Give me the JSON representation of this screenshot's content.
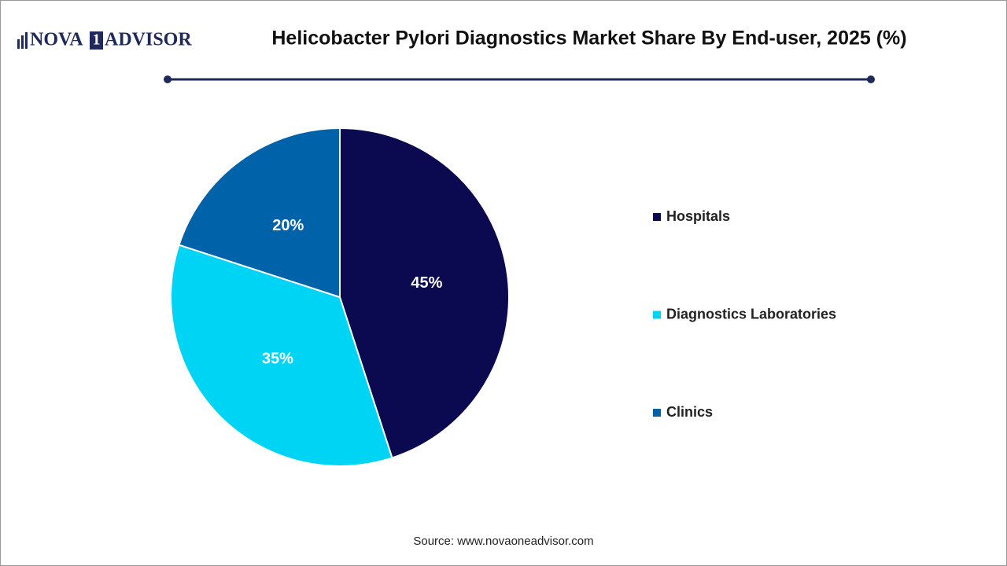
{
  "logo": [
    "NOVA",
    "1",
    "ADVISOR"
  ],
  "chart_data": {
    "type": "pie",
    "title": "Helicobacter Pylori Diagnostics Market Share By End-user, 2025 (%)",
    "categories": [
      "Hospitals",
      "Diagnostics Laboratories",
      "Clinics"
    ],
    "values": [
      45,
      35,
      20
    ],
    "value_labels": [
      "45%",
      "35%",
      "20%"
    ],
    "colors": [
      "#0b0a50",
      "#00d4f5",
      "#0062a9"
    ],
    "legend": "right",
    "source": "Source: www.novaoneadvisor.com"
  }
}
